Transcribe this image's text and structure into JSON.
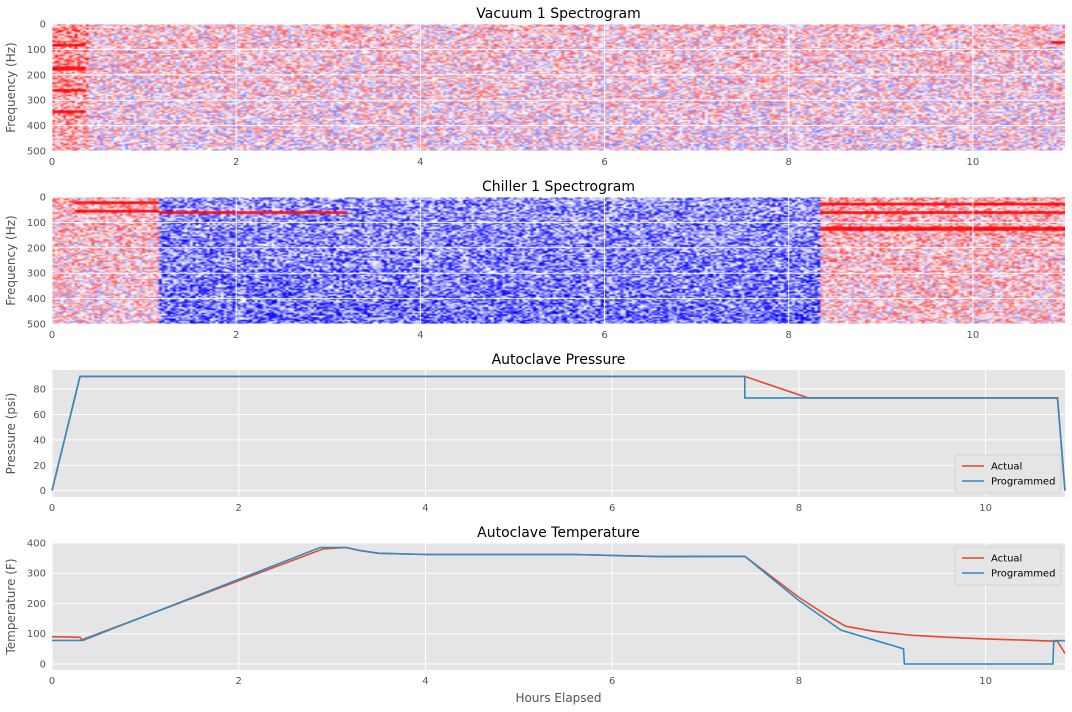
{
  "chart_data": [
    {
      "type": "heatmap",
      "title": "Vacuum 1 Spectrogram",
      "xlabel": "",
      "ylabel": "Frequency (Hz)",
      "xlim": [
        0,
        11
      ],
      "ylim": [
        500,
        0
      ],
      "xticks": [
        0,
        2,
        4,
        6,
        8,
        10
      ],
      "yticks": [
        0,
        100,
        200,
        300,
        400,
        500
      ],
      "colormap": "bwr",
      "grid": true,
      "bands": [
        {
          "x": [
            0,
            0.4
          ],
          "level": 0.72
        },
        {
          "x": [
            0.4,
            11
          ],
          "level": 0.58
        }
      ],
      "lines": [
        {
          "x": [
            0,
            0.38
          ],
          "y": 85
        },
        {
          "x": [
            0,
            0.38
          ],
          "y": 175
        },
        {
          "x": [
            0,
            0.38
          ],
          "y": 260
        },
        {
          "x": [
            0,
            0.38
          ],
          "y": 345
        },
        {
          "x": [
            10.85,
            11
          ],
          "y": 70
        }
      ]
    },
    {
      "type": "heatmap",
      "title": "Chiller 1 Spectrogram",
      "xlabel": "",
      "ylabel": "Frequency (Hz)",
      "xlim": [
        0,
        11
      ],
      "ylim": [
        500,
        0
      ],
      "xticks": [
        0,
        2,
        4,
        6,
        8,
        10
      ],
      "yticks": [
        0,
        100,
        200,
        300,
        400,
        500
      ],
      "colormap": "bwr",
      "grid": true,
      "bands": [
        {
          "x": [
            0,
            1.17
          ],
          "level": 0.62
        },
        {
          "x": [
            1.17,
            8.33
          ],
          "level": 0.3
        },
        {
          "x": [
            8.33,
            11
          ],
          "level": 0.64
        }
      ],
      "lines": [
        {
          "x": [
            0.25,
            1.17
          ],
          "y": 20
        },
        {
          "x": [
            0.25,
            1.17
          ],
          "y": 55
        },
        {
          "x": [
            1.17,
            3.2
          ],
          "y": 62
        },
        {
          "x": [
            8.33,
            11
          ],
          "y": 30
        },
        {
          "x": [
            8.33,
            11
          ],
          "y": 60
        },
        {
          "x": [
            8.33,
            11
          ],
          "y": 125
        }
      ]
    },
    {
      "type": "line",
      "title": "Autoclave Pressure",
      "xlabel": "",
      "ylabel": "Pressure (psi)",
      "xlim": [
        0,
        10.85
      ],
      "ylim": [
        -5,
        95
      ],
      "xticks": [
        0,
        2,
        4,
        6,
        8,
        10
      ],
      "yticks": [
        0,
        20,
        40,
        60,
        80
      ],
      "grid": true,
      "legend": "lower-right",
      "series": [
        {
          "name": "Actual",
          "color": "#e24a33",
          "x": [
            0,
            0.3,
            7.42,
            8.1,
            10.77,
            10.85
          ],
          "y": [
            0,
            90,
            90,
            73,
            73,
            0
          ]
        },
        {
          "name": "Programmed",
          "color": "#348abd",
          "x": [
            0,
            0.3,
            7.42,
            7.42,
            10.77,
            10.85
          ],
          "y": [
            0,
            90,
            90,
            73,
            73,
            0
          ]
        }
      ]
    },
    {
      "type": "line",
      "title": "Autoclave Temperature",
      "xlabel": "Hours Elapsed",
      "ylabel": "Temperature (F)",
      "xlim": [
        0,
        10.85
      ],
      "ylim": [
        -20,
        400
      ],
      "xticks": [
        0,
        2,
        4,
        6,
        8,
        10
      ],
      "yticks": [
        0,
        100,
        200,
        300,
        400
      ],
      "grid": true,
      "legend": "top-right",
      "series": [
        {
          "name": "Actual",
          "color": "#e24a33",
          "x": [
            0,
            0.3,
            0.32,
            2.9,
            3.15,
            3.3,
            3.5,
            4.0,
            5.6,
            6.5,
            7.42,
            8.0,
            8.3,
            8.5,
            8.8,
            9.2,
            9.6,
            10.0,
            10.4,
            10.77,
            10.85
          ],
          "y": [
            90,
            88,
            80,
            380,
            385,
            375,
            366,
            362,
            362,
            355,
            356,
            220,
            160,
            125,
            108,
            95,
            88,
            83,
            79,
            75,
            35
          ]
        },
        {
          "name": "Programmed",
          "color": "#348abd",
          "x": [
            0,
            0.33,
            2.87,
            3.15,
            3.3,
            3.5,
            4.0,
            5.6,
            6.5,
            7.42,
            8.0,
            8.45,
            9.12,
            9.13,
            10.72,
            10.73,
            10.85
          ],
          "y": [
            78,
            78,
            385,
            385,
            375,
            366,
            362,
            362,
            355,
            356,
            210,
            112,
            50,
            0,
            0,
            77,
            77
          ]
        }
      ]
    }
  ]
}
